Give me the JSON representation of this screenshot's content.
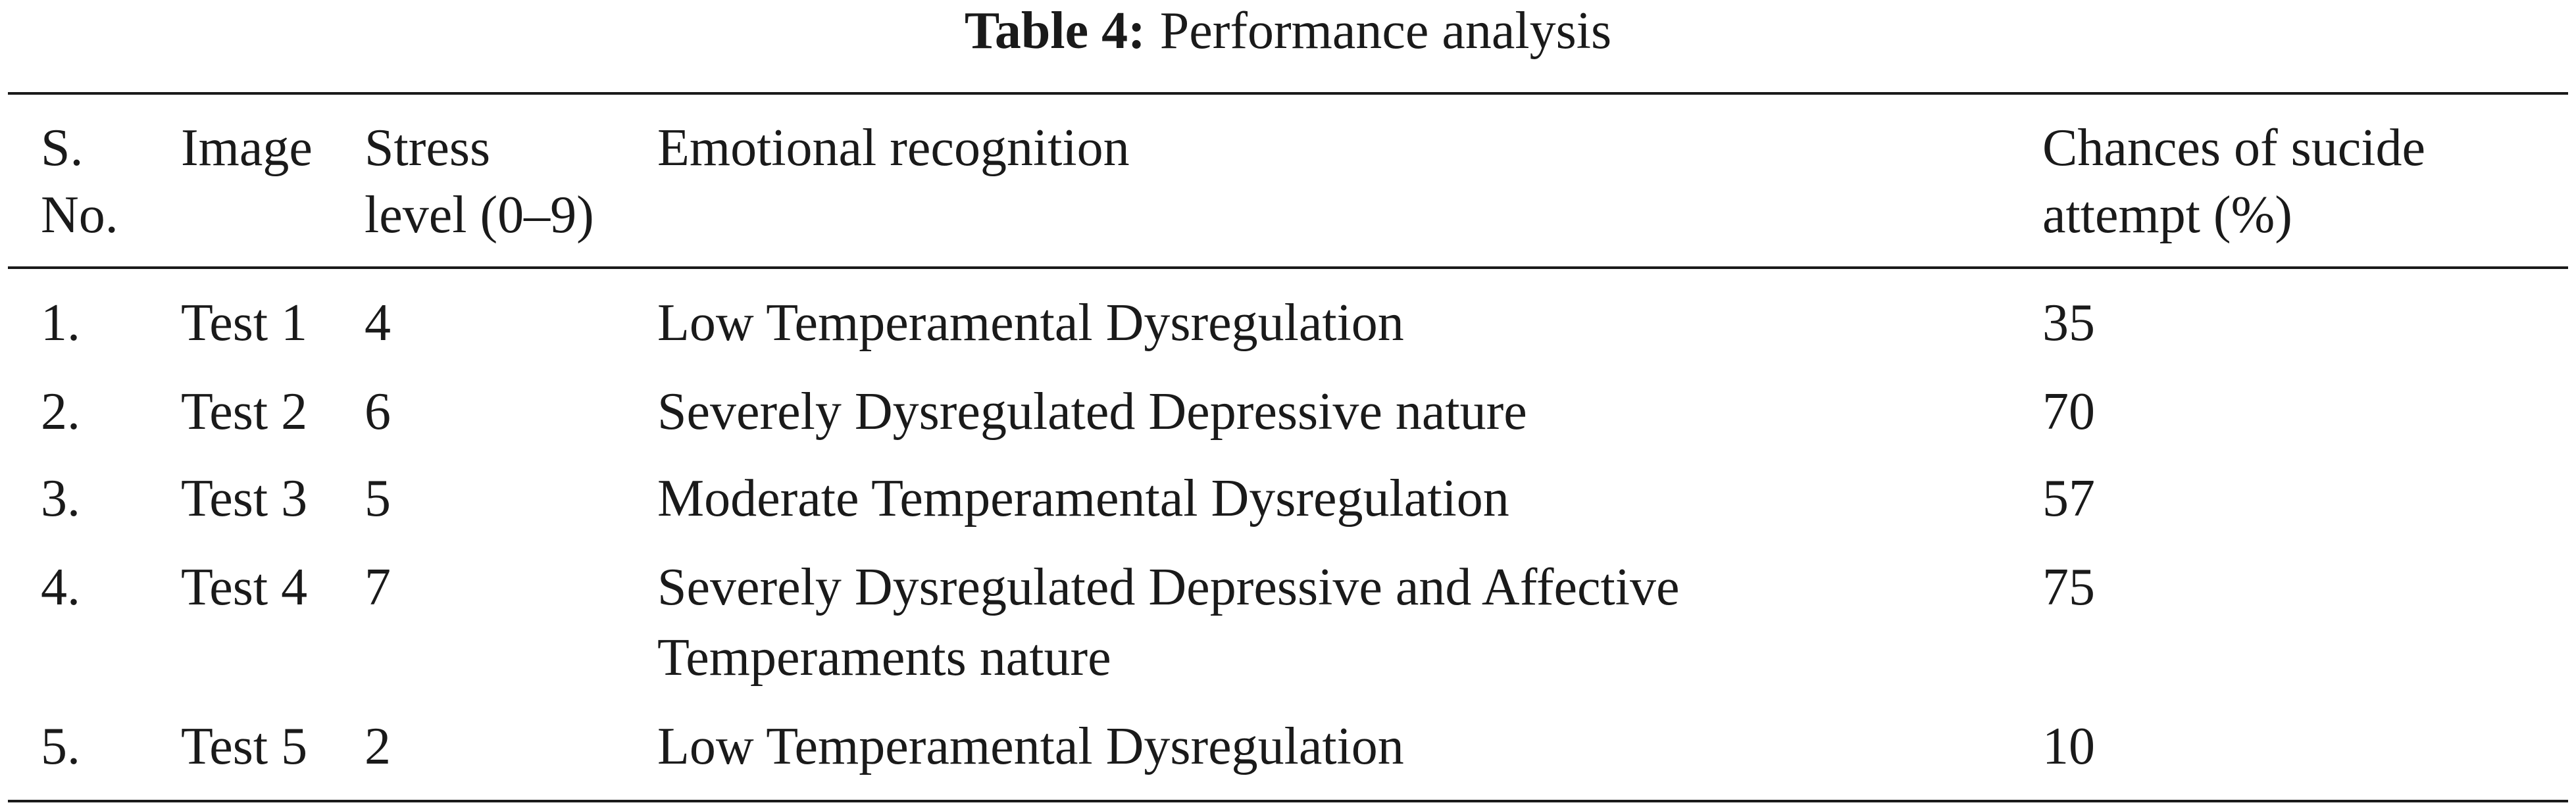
{
  "caption": {
    "label": "Table 4:",
    "title": "Performance analysis"
  },
  "table": {
    "header": [
      [
        "S.",
        "No."
      ],
      [
        "Image"
      ],
      [
        "Stress",
        "level (0–9)"
      ],
      [
        "Emotional recognition"
      ],
      [
        "Chances of sucide",
        "attempt (%)"
      ]
    ],
    "rows": [
      [
        "1.",
        "Test 1",
        "4",
        "Low Temperamental Dysregulation",
        "35"
      ],
      [
        "2.",
        "Test 2",
        "6",
        "Severely Dysregulated Depressive nature",
        "70"
      ],
      [
        "3.",
        "Test 3",
        "5",
        "Moderate Temperamental Dysregulation",
        "57"
      ],
      [
        "4.",
        "Test 4",
        "7",
        "Severely Dysregulated Depressive and Affective Temperaments nature",
        "75"
      ],
      [
        "5.",
        "Test 5",
        "2",
        "Low Temperamental Dysregulation",
        "10"
      ]
    ]
  }
}
